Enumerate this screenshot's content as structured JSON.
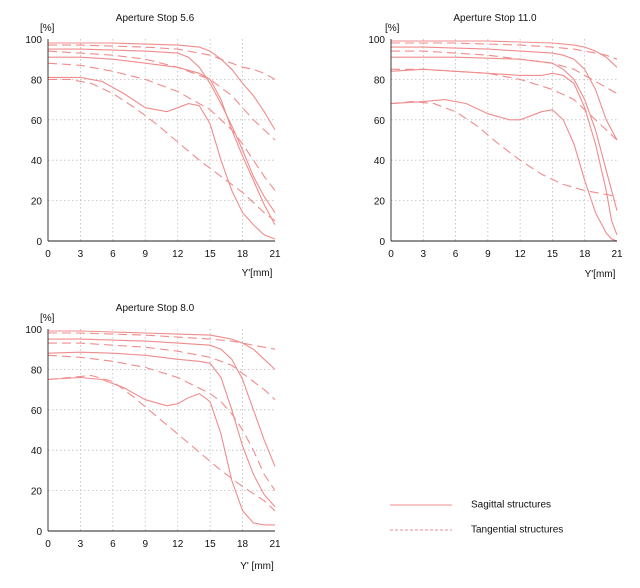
{
  "colors": {
    "curve": "#f08c8c",
    "axis": "#222222",
    "grid": "#bdbdbd"
  },
  "legend": {
    "sagittal_label": "Sagittal structures",
    "tangential_label": "Tangential structures"
  },
  "chart_data": [
    {
      "type": "line",
      "title": "Aperture Stop 5.6",
      "ylabel": "[%]",
      "xlabel": "Y'[mm]",
      "xlim": [
        0,
        21
      ],
      "ylim": [
        0,
        100
      ],
      "xticks": [
        0,
        3,
        6,
        9,
        12,
        15,
        18,
        21
      ],
      "yticks": [
        0,
        20,
        40,
        60,
        80,
        100
      ],
      "grid": true,
      "series": [
        {
          "style": "sagittal",
          "x": [
            0,
            3,
            6,
            9,
            12,
            14,
            15,
            16,
            17,
            18,
            19,
            20,
            21
          ],
          "y": [
            98,
            98,
            98,
            97.5,
            97,
            96,
            94,
            90,
            85,
            78,
            72,
            64,
            55
          ]
        },
        {
          "style": "tangential",
          "x": [
            0,
            3,
            6,
            9,
            12,
            15,
            16,
            17,
            18,
            19,
            20,
            21
          ],
          "y": [
            97,
            97,
            96.5,
            96,
            95,
            92,
            90,
            88,
            86,
            85,
            83,
            80
          ]
        },
        {
          "style": "sagittal",
          "x": [
            0,
            3,
            6,
            9,
            12,
            13,
            14,
            15,
            16,
            17,
            18,
            19,
            20,
            21
          ],
          "y": [
            95,
            95,
            94.5,
            94,
            93,
            91,
            86,
            78,
            68,
            57,
            45,
            32,
            22,
            14
          ]
        },
        {
          "style": "tangential",
          "x": [
            0,
            3,
            6,
            9,
            12,
            15,
            17,
            18,
            19,
            20,
            21
          ],
          "y": [
            94,
            93,
            92,
            90,
            86,
            80,
            72,
            66,
            60,
            55,
            50
          ]
        },
        {
          "style": "sagittal",
          "x": [
            0,
            3,
            6,
            9,
            12,
            14,
            15,
            16,
            17,
            18,
            19,
            20,
            21
          ],
          "y": [
            91,
            91,
            90,
            88,
            86,
            83,
            80,
            70,
            55,
            42,
            30,
            18,
            8
          ]
        },
        {
          "style": "tangential",
          "x": [
            0,
            3,
            6,
            9,
            12,
            15,
            16,
            17,
            18,
            19,
            20,
            21
          ],
          "y": [
            88,
            87,
            84,
            80,
            74,
            65,
            60,
            55,
            48,
            40,
            32,
            25
          ]
        },
        {
          "style": "sagittal",
          "x": [
            0,
            3,
            5,
            7,
            9,
            11,
            12,
            13,
            14,
            15,
            16,
            17,
            18,
            19,
            20,
            21
          ],
          "y": [
            81,
            81,
            79,
            73,
            66,
            64,
            66,
            68,
            67,
            58,
            40,
            25,
            14,
            8,
            3,
            1
          ]
        },
        {
          "style": "tangential",
          "x": [
            0,
            2,
            4,
            6,
            8,
            10,
            12,
            14,
            16,
            18,
            20,
            21
          ],
          "y": [
            80,
            80,
            78,
            73,
            66,
            58,
            49,
            40,
            32,
            24,
            14,
            10
          ]
        }
      ]
    },
    {
      "type": "line",
      "title": "Aperture Stop 11.0",
      "ylabel": "[%]",
      "xlabel": "Y'[mm]",
      "xlim": [
        0,
        21
      ],
      "ylim": [
        0,
        100
      ],
      "xticks": [
        0,
        3,
        6,
        9,
        12,
        15,
        18,
        21
      ],
      "yticks": [
        0,
        20,
        40,
        60,
        80,
        100
      ],
      "grid": true,
      "series": [
        {
          "style": "sagittal",
          "x": [
            0,
            3,
            6,
            9,
            12,
            15,
            17,
            18,
            19,
            20,
            21
          ],
          "y": [
            99,
            99,
            99,
            99,
            98.5,
            98,
            97,
            96,
            94,
            91,
            86
          ]
        },
        {
          "style": "tangential",
          "x": [
            0,
            3,
            6,
            9,
            12,
            15,
            17,
            18,
            19,
            20,
            21
          ],
          "y": [
            98,
            98,
            98,
            97.5,
            97,
            96,
            95,
            94,
            93,
            92,
            90
          ]
        },
        {
          "style": "sagittal",
          "x": [
            0,
            3,
            6,
            9,
            12,
            15,
            16,
            17,
            18,
            19,
            20,
            21
          ],
          "y": [
            96,
            96,
            95.5,
            95,
            94,
            93,
            92,
            90,
            85,
            75,
            60,
            50
          ]
        },
        {
          "style": "tangential",
          "x": [
            0,
            3,
            6,
            9,
            12,
            15,
            17,
            18,
            19,
            20,
            21
          ],
          "y": [
            94,
            94,
            93,
            92,
            90,
            88,
            85,
            82,
            79,
            76,
            73
          ]
        },
        {
          "style": "sagittal",
          "x": [
            0,
            3,
            6,
            9,
            12,
            15,
            16,
            17,
            18,
            19,
            20,
            21
          ],
          "y": [
            91,
            91,
            91,
            90.5,
            90,
            88,
            85,
            80,
            70,
            55,
            35,
            15
          ]
        },
        {
          "style": "tangential",
          "x": [
            0,
            3,
            6,
            9,
            12,
            15,
            17,
            18,
            19,
            20,
            21
          ],
          "y": [
            85,
            85,
            84,
            83,
            80,
            75,
            70,
            65,
            60,
            55,
            50
          ]
        },
        {
          "style": "sagittal",
          "x": [
            0,
            3,
            6,
            9,
            12,
            14,
            15,
            16,
            17,
            18,
            19,
            20,
            20.5,
            21
          ],
          "y": [
            84,
            85,
            84,
            83,
            82,
            82,
            83,
            82,
            78,
            66,
            48,
            25,
            10,
            3
          ]
        },
        {
          "style": "sagittal",
          "x": [
            0,
            3,
            5,
            7,
            9,
            11,
            12,
            13,
            14,
            15,
            16,
            17,
            18,
            19,
            20,
            20.5,
            21
          ],
          "y": [
            68,
            69,
            70,
            68,
            63,
            60,
            60,
            62,
            64,
            65,
            60,
            48,
            30,
            14,
            4,
            1,
            0
          ]
        },
        {
          "style": "tangential",
          "x": [
            0,
            2,
            4,
            6,
            8,
            10,
            12,
            14,
            16,
            18,
            20,
            21
          ],
          "y": [
            68,
            69,
            68,
            64,
            57,
            48,
            40,
            33,
            28,
            25,
            23,
            22
          ]
        }
      ]
    },
    {
      "type": "line",
      "title": "Aperture Stop 8.0",
      "ylabel": "[%]",
      "xlabel": "Y' [mm]",
      "xlim": [
        0,
        21
      ],
      "ylim": [
        0,
        100
      ],
      "xticks": [
        0,
        3,
        6,
        9,
        12,
        15,
        18,
        21
      ],
      "yticks": [
        0,
        20,
        40,
        60,
        80,
        100
      ],
      "grid": true,
      "series": [
        {
          "style": "sagittal",
          "x": [
            0,
            3,
            6,
            9,
            12,
            15,
            16,
            17,
            18,
            19,
            20,
            21
          ],
          "y": [
            99,
            99,
            98.5,
            98,
            97.5,
            97,
            96,
            95,
            93,
            90,
            85,
            80
          ]
        },
        {
          "style": "tangential",
          "x": [
            0,
            3,
            6,
            9,
            12,
            15,
            17,
            18,
            19,
            20,
            21
          ],
          "y": [
            98,
            98,
            97.5,
            97,
            96,
            95,
            94,
            93,
            92,
            91,
            90
          ]
        },
        {
          "style": "sagittal",
          "x": [
            0,
            3,
            6,
            9,
            12,
            15,
            16,
            17,
            18,
            19,
            20,
            21
          ],
          "y": [
            95,
            95,
            94.5,
            94,
            93,
            92,
            90,
            85,
            75,
            60,
            45,
            32
          ]
        },
        {
          "style": "tangential",
          "x": [
            0,
            3,
            6,
            9,
            12,
            15,
            17,
            18,
            19,
            20,
            21
          ],
          "y": [
            93,
            93,
            92,
            91,
            89,
            86,
            82,
            78,
            74,
            70,
            65
          ]
        },
        {
          "style": "sagittal",
          "x": [
            0,
            3,
            6,
            9,
            12,
            14,
            15,
            16,
            17,
            18,
            19,
            20,
            21
          ],
          "y": [
            88,
            88.5,
            88,
            87,
            85,
            84,
            83,
            76,
            60,
            42,
            28,
            18,
            12
          ]
        },
        {
          "style": "tangential",
          "x": [
            0,
            3,
            6,
            9,
            12,
            15,
            16,
            17,
            18,
            19,
            20,
            21
          ],
          "y": [
            87,
            86,
            84,
            81,
            76,
            68,
            64,
            58,
            50,
            40,
            28,
            20
          ]
        },
        {
          "style": "sagittal",
          "x": [
            0,
            3,
            5,
            7,
            9,
            11,
            12,
            13,
            14,
            15,
            16,
            17,
            18,
            19,
            20,
            21
          ],
          "y": [
            75,
            76,
            75,
            71,
            65,
            62,
            63,
            66,
            68,
            64,
            48,
            25,
            10,
            4,
            3,
            3
          ]
        },
        {
          "style": "tangential",
          "x": [
            0,
            2,
            4,
            6,
            8,
            10,
            12,
            14,
            16,
            18,
            20,
            21
          ],
          "y": [
            75,
            76,
            77,
            74,
            66,
            57,
            48,
            39,
            30,
            22,
            15,
            10
          ]
        }
      ]
    }
  ]
}
